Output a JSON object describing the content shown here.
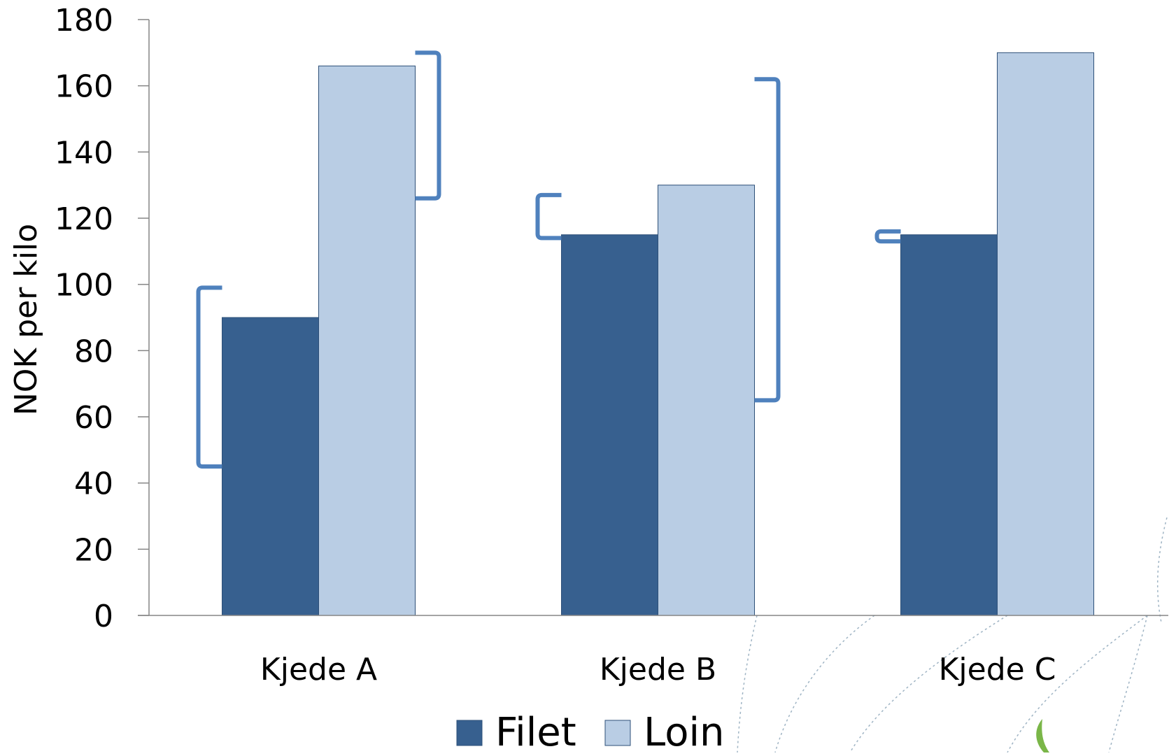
{
  "chart_data": {
    "type": "bar",
    "title": "",
    "xlabel": "",
    "ylabel": "NOK per kilo",
    "ylim": [
      0,
      180
    ],
    "yticks": [
      0,
      20,
      40,
      60,
      80,
      100,
      120,
      140,
      160,
      180
    ],
    "grid": false,
    "legend_position": "bottom",
    "categories": [
      "Kjede A",
      "Kjede B",
      "Kjede C"
    ],
    "series": [
      {
        "name": "Filet",
        "values": [
          90,
          115,
          115
        ],
        "color": "#37608f"
      },
      {
        "name": "Loin",
        "values": [
          166,
          130,
          170
        ],
        "color": "#b9cde4"
      }
    ],
    "range_brackets": [
      {
        "category": "Kjede A",
        "series": "Filet",
        "side": "left",
        "low": 45,
        "high": 99
      },
      {
        "category": "Kjede A",
        "series": "Loin",
        "side": "right",
        "low": 126,
        "high": 170
      },
      {
        "category": "Kjede B",
        "series": "Filet",
        "side": "left",
        "low": 114,
        "high": 127
      },
      {
        "category": "Kjede B",
        "series": "Loin",
        "side": "right",
        "low": 65,
        "high": 162
      },
      {
        "category": "Kjede C",
        "series": "Filet",
        "side": "left",
        "low": 113,
        "high": 116
      }
    ],
    "bracket_color": "#4f81bd",
    "axis_color": "#868686"
  }
}
